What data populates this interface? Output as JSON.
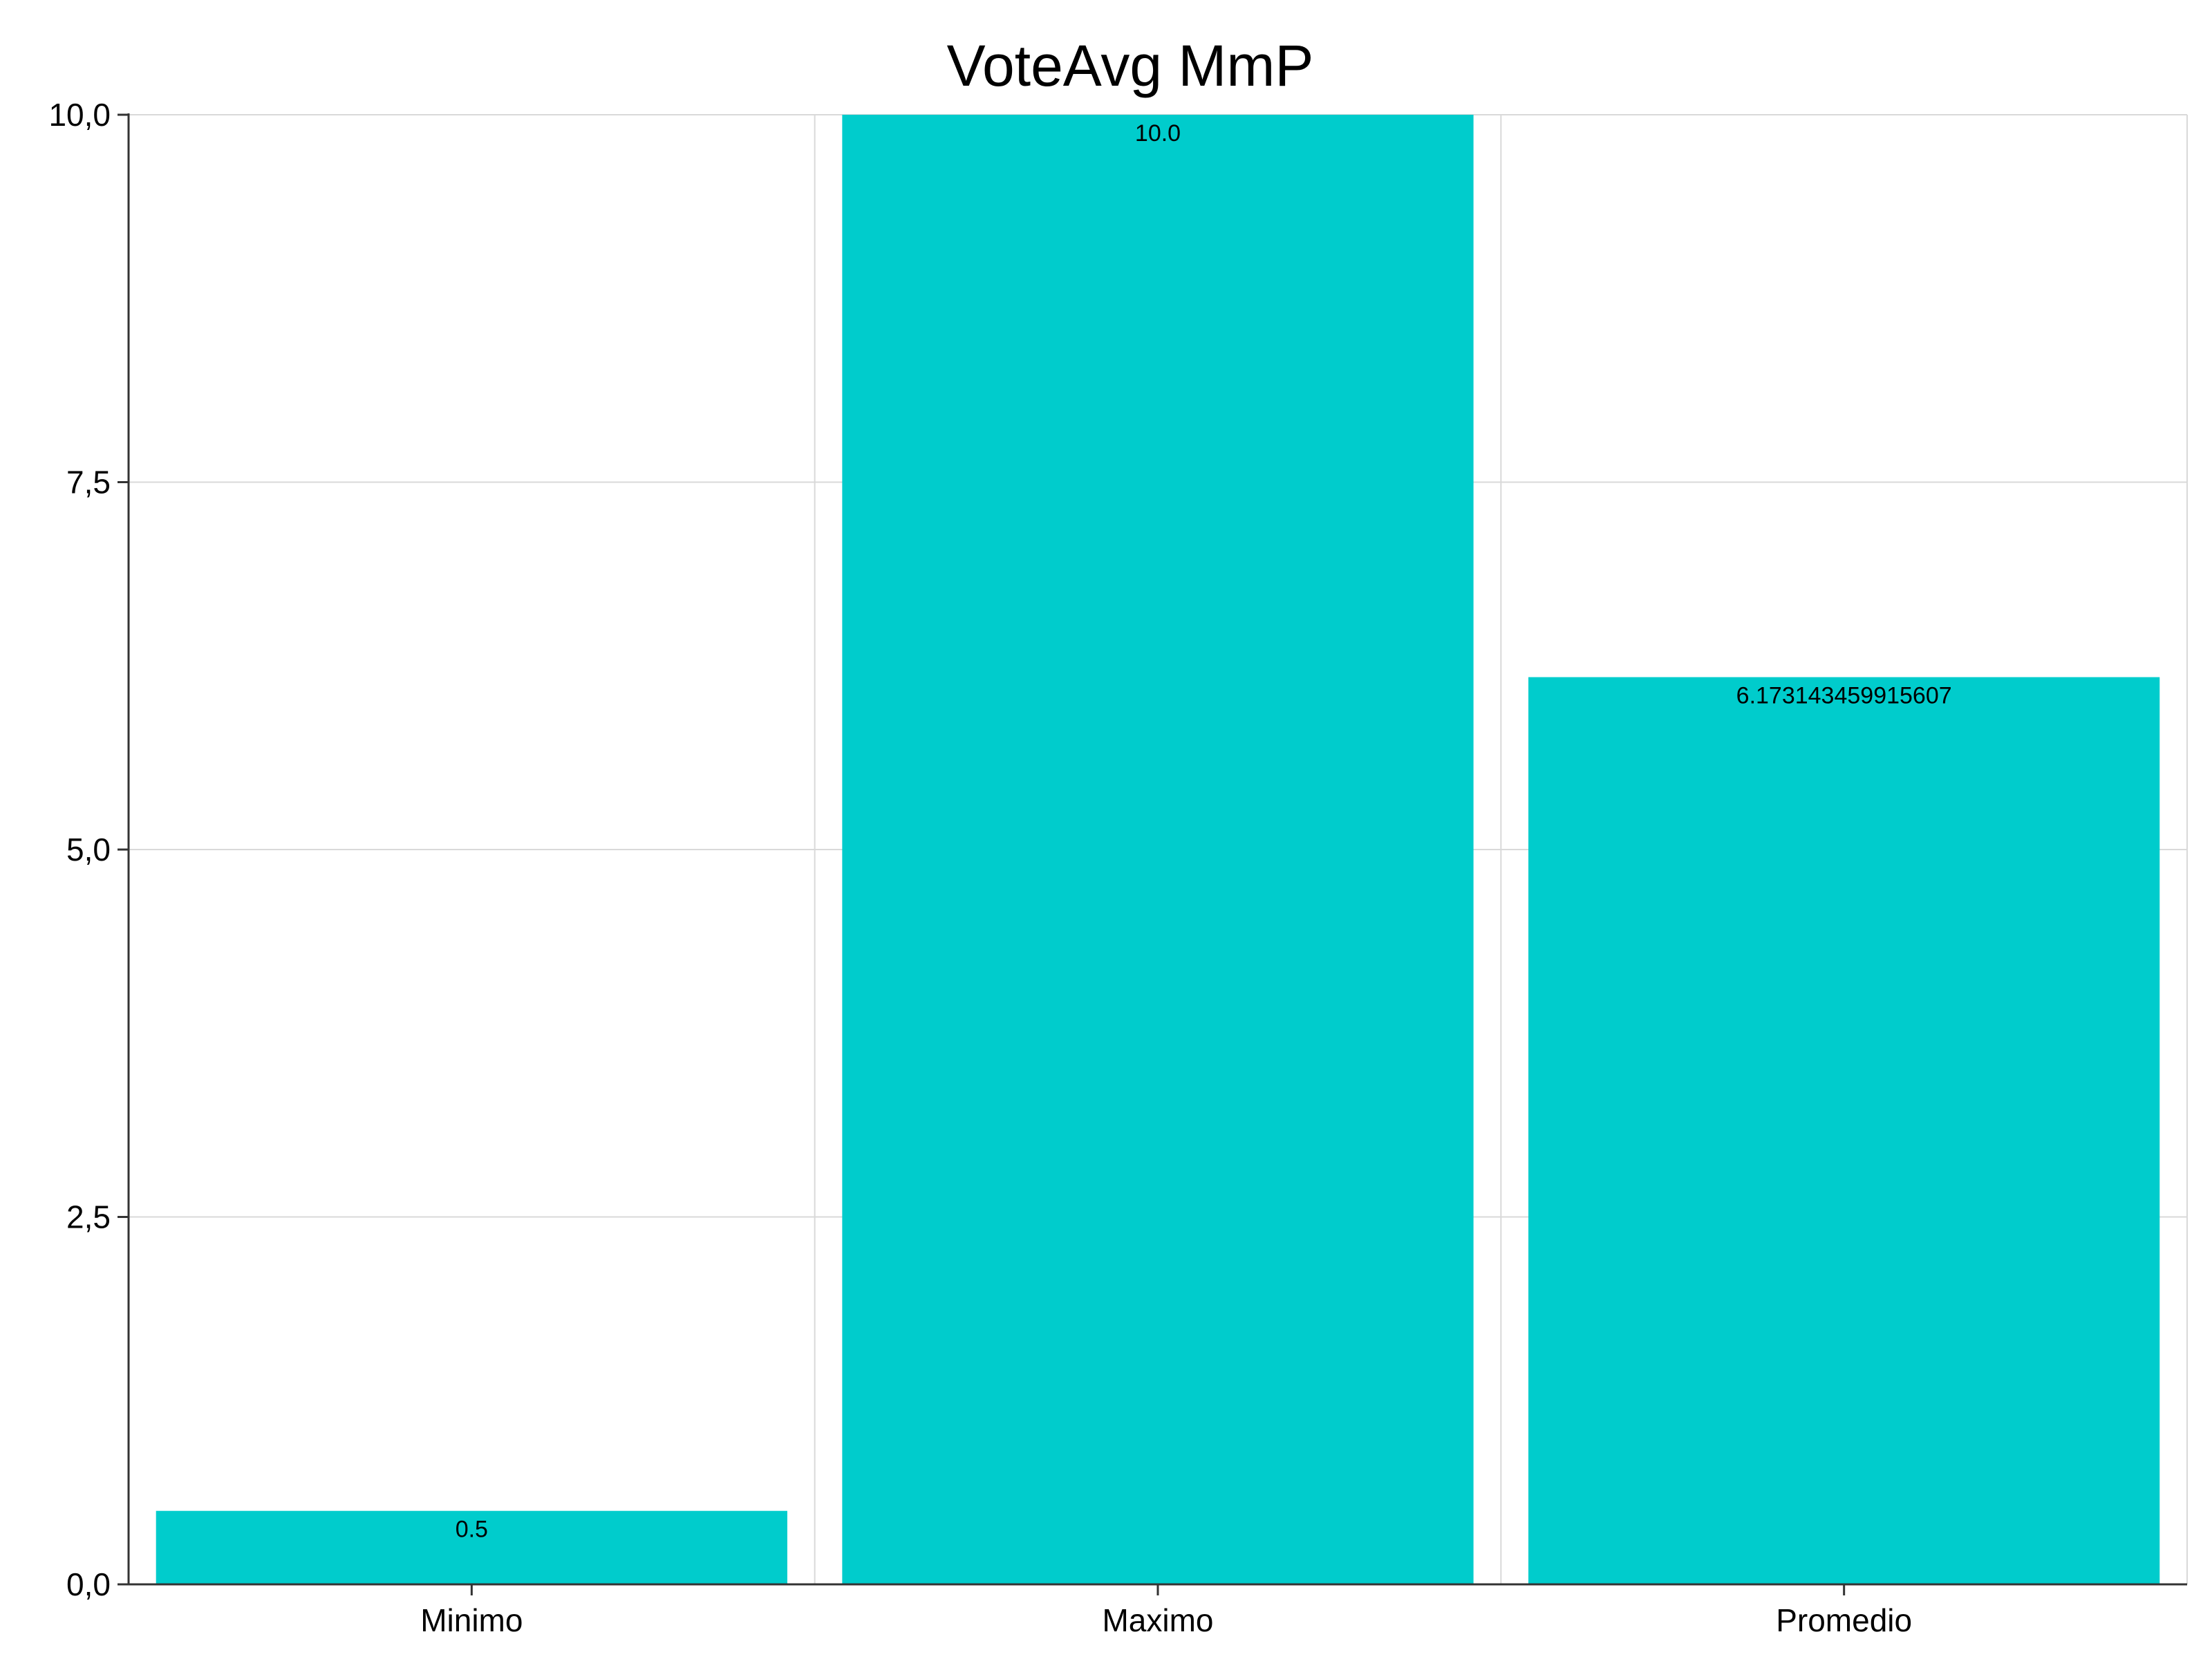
{
  "chart_data": {
    "type": "bar",
    "title": "VoteAvg MmP",
    "xlabel": "",
    "ylabel": "",
    "categories": [
      "Minimo",
      "Maximo",
      "Promedio"
    ],
    "values": [
      0.5,
      10.0,
      6.173143459915607
    ],
    "data_labels": [
      "0.5",
      "10.0",
      "6.173143459915607"
    ],
    "ylim": [
      0,
      10
    ],
    "yticks": [
      0,
      2.5,
      5,
      7.5,
      10
    ],
    "ytick_labels": [
      "0,0",
      "2,5",
      "5,0",
      "7,5",
      "10,0"
    ],
    "bar_color": "#00CCCC",
    "grid": true,
    "legend": "none"
  }
}
